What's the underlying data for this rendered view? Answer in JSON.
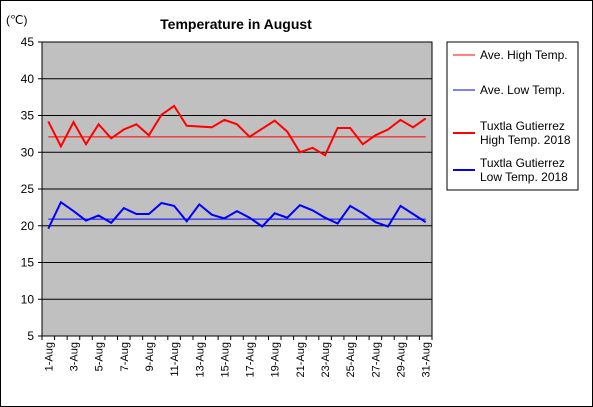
{
  "chart_data": {
    "type": "line",
    "title": "Temperature in August",
    "unit_label": "(℃)",
    "ylim": [
      5,
      45
    ],
    "y_ticks": [
      5,
      10,
      15,
      20,
      25,
      30,
      35,
      40,
      45
    ],
    "grid": true,
    "legend_position": "right",
    "x_ticks": [
      "1-Aug",
      "3-Aug",
      "5-Aug",
      "7-Aug",
      "9-Aug",
      "11-Aug",
      "13-Aug",
      "15-Aug",
      "17-Aug",
      "19-Aug",
      "21-Aug",
      "23-Aug",
      "25-Aug",
      "27-Aug",
      "29-Aug",
      "31-Aug"
    ],
    "x": [
      1,
      2,
      3,
      4,
      5,
      6,
      7,
      8,
      9,
      10,
      11,
      12,
      13,
      14,
      15,
      16,
      17,
      18,
      19,
      20,
      21,
      22,
      23,
      24,
      25,
      26,
      27,
      28,
      29,
      30,
      31
    ],
    "series": [
      {
        "name": "Ave. High Temp.",
        "color": "#ff0000",
        "width": 1,
        "constant": 32.1
      },
      {
        "name": "Ave. Low Temp.",
        "color": "#0000ff",
        "width": 1,
        "constant": 20.9
      },
      {
        "name": "Tuxtla Gutierrez High Temp. 2018",
        "legend_lines": [
          "Tuxtla Gutierrez",
          "High Temp. 2018"
        ],
        "color": "#ff0000",
        "width": 2,
        "values": [
          34.2,
          30.8,
          34.1,
          31.1,
          33.8,
          31.9,
          33.1,
          33.8,
          32.3,
          35.1,
          36.3,
          33.6,
          33.5,
          33.4,
          34.4,
          33.8,
          32.1,
          33.2,
          34.3,
          32.8,
          30.0,
          30.6,
          29.6,
          33.3,
          33.3,
          31.1,
          32.3,
          33.1,
          34.4,
          33.4,
          34.6
        ]
      },
      {
        "name": "Tuxtla Gutierrez Low Temp. 2018",
        "legend_lines": [
          "Tuxtla Gutierrez",
          "Low Temp. 2018"
        ],
        "color": "#0000ff",
        "width": 2,
        "values": [
          19.6,
          23.2,
          22.0,
          20.7,
          21.4,
          20.4,
          22.4,
          21.6,
          21.6,
          23.1,
          22.7,
          20.6,
          22.9,
          21.5,
          21.0,
          22.0,
          21.1,
          19.9,
          21.7,
          21.1,
          22.8,
          22.1,
          21.1,
          20.3,
          22.7,
          21.7,
          20.5,
          19.9,
          22.7,
          21.6,
          20.5
        ]
      }
    ]
  }
}
